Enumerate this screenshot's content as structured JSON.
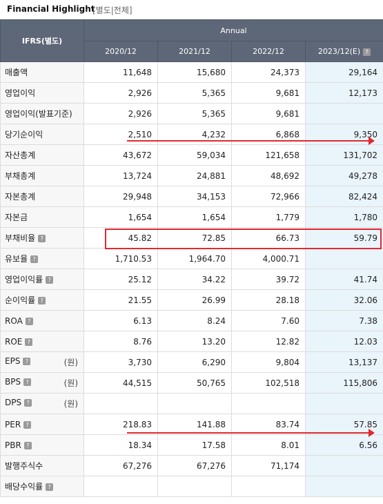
{
  "header": {
    "title": "Financial Highlight",
    "subtabs": "[별도|전체]"
  },
  "table": {
    "corner_label": "IFRS(별도)",
    "group_label": "Annual",
    "years": [
      "2020/12",
      "2021/12",
      "2022/12",
      "2023/12(E)"
    ],
    "rows": [
      {
        "label": "매출액",
        "help": false,
        "unit": "",
        "values": [
          "11,648",
          "15,680",
          "24,373",
          "29,164"
        ]
      },
      {
        "label": "영업이익",
        "help": false,
        "unit": "",
        "values": [
          "2,926",
          "5,365",
          "9,681",
          "12,173"
        ]
      },
      {
        "label": "영업이익(발표기준)",
        "help": false,
        "unit": "",
        "values": [
          "2,926",
          "5,365",
          "9,681",
          ""
        ]
      },
      {
        "label": "당기순이익",
        "help": false,
        "unit": "",
        "values": [
          "2,510",
          "4,232",
          "6,868",
          "9,350"
        ]
      },
      {
        "label": "자산총계",
        "help": false,
        "unit": "",
        "values": [
          "43,672",
          "59,034",
          "121,658",
          "131,702"
        ]
      },
      {
        "label": "부채총계",
        "help": false,
        "unit": "",
        "values": [
          "13,724",
          "24,881",
          "48,692",
          "49,278"
        ]
      },
      {
        "label": "자본총계",
        "help": false,
        "unit": "",
        "values": [
          "29,948",
          "34,153",
          "72,966",
          "82,424"
        ]
      },
      {
        "label": "자본금",
        "help": false,
        "unit": "",
        "values": [
          "1,654",
          "1,654",
          "1,779",
          "1,780"
        ]
      },
      {
        "label": "부채비율",
        "help": true,
        "unit": "",
        "values": [
          "45.82",
          "72.85",
          "66.73",
          "59.79"
        ]
      },
      {
        "label": "유보율",
        "help": true,
        "unit": "",
        "values": [
          "1,710.53",
          "1,964.70",
          "4,000.71",
          ""
        ]
      },
      {
        "label": "영업이익률",
        "help": true,
        "unit": "",
        "values": [
          "25.12",
          "34.22",
          "39.72",
          "41.74"
        ]
      },
      {
        "label": "순이익률",
        "help": true,
        "unit": "",
        "values": [
          "21.55",
          "26.99",
          "28.18",
          "32.06"
        ]
      },
      {
        "label": "ROA",
        "help": true,
        "unit": "",
        "values": [
          "6.13",
          "8.24",
          "7.60",
          "7.38"
        ]
      },
      {
        "label": "ROE",
        "help": true,
        "unit": "",
        "values": [
          "8.76",
          "13.20",
          "12.82",
          "12.03"
        ]
      },
      {
        "label": "EPS",
        "help": true,
        "unit": "(원)",
        "values": [
          "3,730",
          "6,290",
          "9,804",
          "13,137"
        ]
      },
      {
        "label": "BPS",
        "help": true,
        "unit": "(원)",
        "values": [
          "44,515",
          "50,765",
          "102,518",
          "115,806"
        ]
      },
      {
        "label": "DPS",
        "help": true,
        "unit": "(원)",
        "values": [
          "",
          "",
          "",
          ""
        ]
      },
      {
        "label": "PER",
        "help": true,
        "unit": "",
        "values": [
          "218.83",
          "141.88",
          "83.74",
          "57.85"
        ]
      },
      {
        "label": "PBR",
        "help": true,
        "unit": "",
        "values": [
          "18.34",
          "17.58",
          "8.01",
          "6.56"
        ]
      },
      {
        "label": "발행주식수",
        "help": false,
        "unit": "",
        "values": [
          "67,276",
          "67,276",
          "71,174",
          ""
        ]
      },
      {
        "label": "배당수익률",
        "help": true,
        "unit": "",
        "values": [
          "",
          "",
          "",
          ""
        ]
      }
    ]
  },
  "colors": {
    "header_bg": "#5e6778",
    "estimate_bg": "#e9f4fb",
    "annotation_red": "#e0282e"
  }
}
